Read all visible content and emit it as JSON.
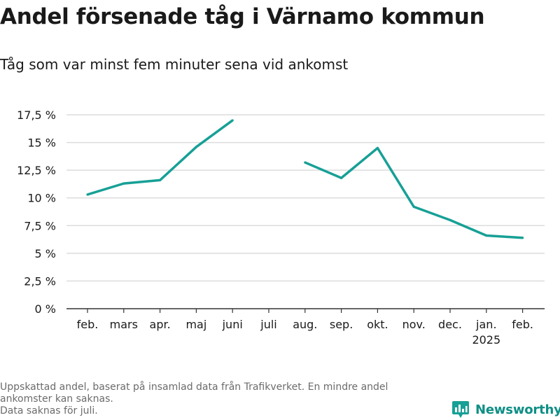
{
  "title": "Andel försenade tåg i Värnamo kommun",
  "subtitle": "Tåg som var minst fem minuter sena vid ankomst",
  "chart_data": {
    "type": "line",
    "title": "Andel försenade tåg i Värnamo kommun",
    "subtitle": "Tåg som var minst fem minuter sena vid ankomst",
    "categories": [
      "feb.",
      "mars",
      "apr.",
      "maj",
      "juni",
      "juli",
      "aug.",
      "sep.",
      "okt.",
      "nov.",
      "dec.",
      "jan.",
      "feb."
    ],
    "year_label": {
      "category_index": 11,
      "text": "2025"
    },
    "series": [
      {
        "values": [
          10.3,
          11.3,
          11.6,
          14.6,
          17.0,
          null,
          13.2,
          11.8,
          14.5,
          9.2,
          8.0,
          6.6,
          6.4
        ],
        "color": "#17a096"
      }
    ],
    "y_ticks": [
      0,
      2.5,
      5,
      7.5,
      10,
      12.5,
      15,
      17.5
    ],
    "y_tick_labels": [
      "0 %",
      "2,5 %",
      "5 %",
      "7,5 %",
      "10 %",
      "12,5 %",
      "15 %",
      "17,5 %"
    ],
    "ylim": [
      0,
      17.5
    ],
    "grid": true,
    "legend": "none"
  },
  "footnote": {
    "line1": "Uppskattad andel, baserat på insamlad data från Trafikverket. En mindre andel",
    "line2": "ankomster kan saknas.",
    "line3": "Data saknas för juli."
  },
  "brand": {
    "name": "Newsworthy",
    "icon": "newsworthy-logo-icon",
    "color": "#0e8f86"
  }
}
